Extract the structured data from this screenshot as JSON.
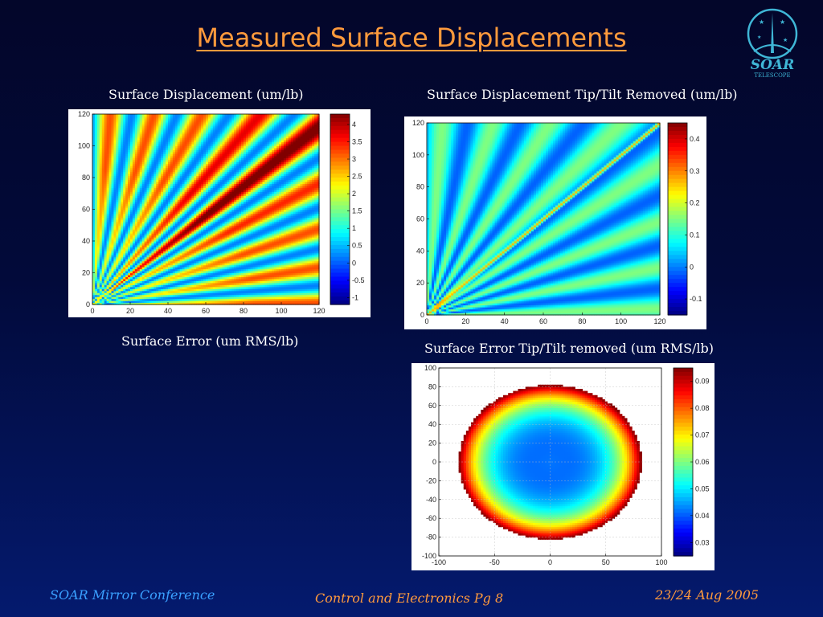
{
  "slide": {
    "title": "Measured Surface Displacements",
    "captions": {
      "top_left": "Surface Displacement (um/lb)",
      "top_right": "Surface Displacement Tip/Tilt Removed (um/lb)",
      "mid_left": "Surface Error (um RMS/lb)",
      "mid_right": "Surface Error Tip/Tilt removed (um RMS/lb)"
    },
    "logo": {
      "line1": "SOAR",
      "line2": "TELESCOPE",
      "icon": "soar-telescope-logo"
    },
    "footer": {
      "left": "SOAR Mirror Conference",
      "center": "Control and Electronics Pg 8",
      "right": "23/24 Aug 2005"
    }
  },
  "chart_data": [
    {
      "type": "heatmap",
      "name": "surface-displacement",
      "xlim": [
        0,
        120
      ],
      "ylim": [
        0,
        120
      ],
      "xticks": [
        "0",
        "20",
        "40",
        "60",
        "80",
        "100",
        "120"
      ],
      "yticks": [
        "0",
        "20",
        "40",
        "60",
        "80",
        "100",
        "120"
      ],
      "colorbar": {
        "range": [
          -1.2,
          4.3
        ],
        "ticks": [
          "4",
          "3.5",
          "3",
          "2.5",
          "2",
          "1.5",
          "1",
          "0.5",
          "0",
          "-0.5",
          "-1"
        ]
      }
    },
    {
      "type": "heatmap",
      "name": "surface-displacement-tip-tilt-removed",
      "xlim": [
        0,
        120
      ],
      "ylim": [
        0,
        120
      ],
      "xticks": [
        "0",
        "20",
        "40",
        "60",
        "80",
        "100",
        "120"
      ],
      "yticks": [
        "0",
        "20",
        "40",
        "60",
        "80",
        "100",
        "120"
      ],
      "colorbar": {
        "range": [
          -0.15,
          0.45
        ],
        "ticks": [
          "0.4",
          "0.3",
          "0.2",
          "0.1",
          "0",
          "-0.1"
        ]
      }
    },
    {
      "type": "heatmap",
      "name": "surface-error-tip-tilt-removed",
      "xlim": [
        -100,
        100
      ],
      "ylim": [
        -100,
        100
      ],
      "xticks": [
        "-100",
        "-50",
        "0",
        "50",
        "100"
      ],
      "yticks": [
        "100",
        "80",
        "60",
        "40",
        "20",
        "0",
        "-20",
        "-40",
        "-60",
        "-80",
        "-100"
      ],
      "colorbar": {
        "range": [
          0.025,
          0.095
        ],
        "ticks": [
          "0.09",
          "0.08",
          "0.07",
          "0.06",
          "0.05",
          "0.04",
          "0.03"
        ]
      }
    }
  ],
  "colors": {
    "title": "#ff9a3c",
    "footer_blue": "#3aa0ff",
    "logo": "#3fb6d6"
  }
}
